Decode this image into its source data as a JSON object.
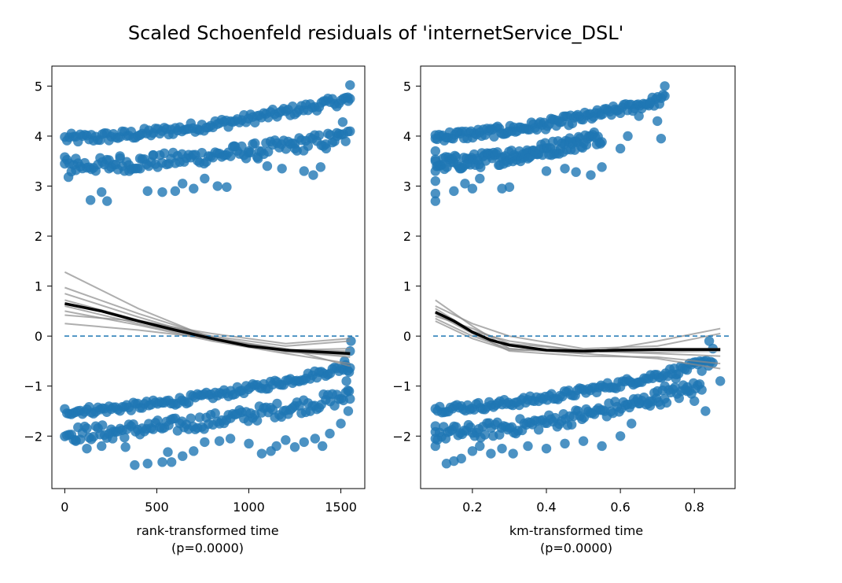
{
  "figure": {
    "title": "Scaled Schoenfeld residuals of 'internetService_DSL'"
  },
  "colors": {
    "points": "#1f77b4",
    "reference_line": "#1f77b4",
    "bootstrap_lines": "#8c8c8c",
    "fit_line": "#000000"
  },
  "chart_data": [
    {
      "type": "scatter",
      "xlabel": "rank-transformed time",
      "xlabel_note": "(p=0.0000)",
      "xlim": [
        -70,
        1630
      ],
      "ylim": [
        -3.05,
        5.4
      ],
      "xticks": [
        0,
        500,
        1000,
        1500
      ],
      "xtick_labels": [
        "0",
        "500",
        "1000",
        "1500"
      ],
      "yticks": [
        -2,
        -1,
        0,
        1,
        2,
        3,
        4,
        5
      ],
      "ytick_labels": [
        "−2",
        "−1",
        "0",
        "1",
        "2",
        "3",
        "4",
        "5"
      ],
      "reference_y": 0,
      "grid": false,
      "fit": {
        "x": [
          0,
          200,
          400,
          600,
          800,
          1000,
          1200,
          1400,
          1550
        ],
        "y": [
          0.65,
          0.5,
          0.3,
          0.12,
          -0.05,
          -0.2,
          -0.28,
          -0.32,
          -0.35
        ]
      },
      "bootstrap": [
        {
          "x": [
            0,
            400,
            800,
            1200,
            1550
          ],
          "y": [
            1.28,
            0.55,
            -0.05,
            -0.3,
            -0.42
          ]
        },
        {
          "x": [
            0,
            400,
            800,
            1200,
            1550
          ],
          "y": [
            0.97,
            0.45,
            -0.02,
            -0.28,
            -0.3
          ]
        },
        {
          "x": [
            0,
            400,
            800,
            1200,
            1550
          ],
          "y": [
            0.85,
            0.38,
            -0.05,
            -0.32,
            -0.38
          ]
        },
        {
          "x": [
            0,
            400,
            800,
            1200,
            1550
          ],
          "y": [
            0.72,
            0.32,
            0.0,
            -0.2,
            -0.1
          ]
        },
        {
          "x": [
            0,
            400,
            800,
            1200,
            1550
          ],
          "y": [
            0.6,
            0.25,
            -0.08,
            -0.28,
            -0.25
          ]
        },
        {
          "x": [
            0,
            400,
            800,
            1200,
            1550
          ],
          "y": [
            0.5,
            0.22,
            -0.1,
            -0.35,
            -0.55
          ]
        },
        {
          "x": [
            0,
            400,
            800,
            1200,
            1550
          ],
          "y": [
            0.42,
            0.3,
            0.05,
            -0.15,
            -0.05
          ]
        },
        {
          "x": [
            0,
            400,
            800,
            1200,
            1550
          ],
          "y": [
            0.25,
            0.12,
            -0.05,
            -0.25,
            -0.6
          ]
        }
      ],
      "bands": [
        {
          "x0": 0,
          "x1": 1550,
          "y0": 3.95,
          "y1": 4.75,
          "spread": 0.1
        },
        {
          "x0": 0,
          "x1": 1550,
          "y0": 3.4,
          "y1": 4.0,
          "spread": 0.15
        },
        {
          "x0": 0,
          "x1": 1550,
          "y0": -1.5,
          "y1": -0.6,
          "spread": 0.08
        },
        {
          "x0": 0,
          "x1": 1550,
          "y0": -1.95,
          "y1": -1.2,
          "spread": 0.15
        }
      ],
      "points": [
        [
          0,
          3.58
        ],
        [
          20,
          3.18
        ],
        [
          60,
          3.55
        ],
        [
          140,
          2.72
        ],
        [
          200,
          2.88
        ],
        [
          230,
          2.7
        ],
        [
          240,
          3.35
        ],
        [
          300,
          3.6
        ],
        [
          350,
          3.3
        ],
        [
          410,
          3.35
        ],
        [
          450,
          2.9
        ],
        [
          480,
          3.62
        ],
        [
          530,
          2.88
        ],
        [
          600,
          2.9
        ],
        [
          640,
          3.05
        ],
        [
          700,
          2.95
        ],
        [
          760,
          3.15
        ],
        [
          830,
          3.0
        ],
        [
          880,
          2.98
        ],
        [
          920,
          3.8
        ],
        [
          1000,
          3.7
        ],
        [
          1050,
          3.55
        ],
        [
          1100,
          3.4
        ],
        [
          1180,
          3.35
        ],
        [
          1250,
          3.75
        ],
        [
          1300,
          3.3
        ],
        [
          1350,
          3.22
        ],
        [
          1390,
          3.38
        ],
        [
          1420,
          3.75
        ],
        [
          1480,
          4.0
        ],
        [
          1510,
          4.28
        ],
        [
          1540,
          4.7
        ],
        [
          1550,
          5.02
        ],
        [
          60,
          -2.1
        ],
        [
          120,
          -2.25
        ],
        [
          200,
          -2.2
        ],
        [
          260,
          -2.05
        ],
        [
          330,
          -2.22
        ],
        [
          380,
          -2.58
        ],
        [
          450,
          -2.55
        ],
        [
          530,
          -2.52
        ],
        [
          560,
          -2.32
        ],
        [
          580,
          -2.52
        ],
        [
          640,
          -2.4
        ],
        [
          700,
          -2.3
        ],
        [
          760,
          -2.12
        ],
        [
          840,
          -2.1
        ],
        [
          900,
          -2.05
        ],
        [
          1000,
          -2.15
        ],
        [
          1070,
          -2.35
        ],
        [
          1120,
          -2.3
        ],
        [
          1150,
          -2.2
        ],
        [
          1200,
          -2.08
        ],
        [
          1250,
          -2.22
        ],
        [
          1300,
          -2.12
        ],
        [
          1360,
          -2.05
        ],
        [
          1400,
          -2.2
        ],
        [
          1440,
          -1.95
        ],
        [
          1500,
          -1.75
        ],
        [
          1540,
          -1.5
        ],
        [
          1545,
          -1.1
        ],
        [
          1550,
          -0.3
        ],
        [
          1555,
          -0.1
        ],
        [
          1545,
          -0.72
        ],
        [
          1530,
          -0.9
        ],
        [
          1520,
          -0.5
        ]
      ]
    },
    {
      "type": "scatter",
      "xlabel": "km-transformed time",
      "xlabel_note": "(p=0.0000)",
      "xlim": [
        0.06,
        0.91
      ],
      "ylim": [
        -3.05,
        5.4
      ],
      "xticks": [
        0.2,
        0.4,
        0.6,
        0.8
      ],
      "xtick_labels": [
        "0.2",
        "0.4",
        "0.6",
        "0.8"
      ],
      "yticks": [
        -2,
        -1,
        0,
        1,
        2,
        3,
        4,
        5
      ],
      "ytick_labels": [
        "−2",
        "−1",
        "0",
        "1",
        "2",
        "3",
        "4",
        "5"
      ],
      "reference_y": 0,
      "grid": false,
      "fit": {
        "x": [
          0.1,
          0.15,
          0.2,
          0.25,
          0.3,
          0.4,
          0.5,
          0.6,
          0.7,
          0.8,
          0.87
        ],
        "y": [
          0.48,
          0.3,
          0.08,
          -0.08,
          -0.18,
          -0.28,
          -0.3,
          -0.28,
          -0.27,
          -0.27,
          -0.27
        ]
      },
      "bootstrap": [
        {
          "x": [
            0.1,
            0.2,
            0.3,
            0.5,
            0.7,
            0.87
          ],
          "y": [
            0.72,
            0.2,
            -0.25,
            -0.35,
            -0.1,
            0.15
          ]
        },
        {
          "x": [
            0.1,
            0.2,
            0.3,
            0.5,
            0.7,
            0.87
          ],
          "y": [
            0.6,
            0.25,
            0.0,
            -0.25,
            -0.2,
            0.05
          ]
        },
        {
          "x": [
            0.1,
            0.2,
            0.3,
            0.5,
            0.7,
            0.87
          ],
          "y": [
            0.55,
            0.1,
            -0.1,
            -0.3,
            -0.35,
            -0.4
          ]
        },
        {
          "x": [
            0.1,
            0.2,
            0.3,
            0.5,
            0.7,
            0.87
          ],
          "y": [
            0.45,
            0.05,
            -0.3,
            -0.4,
            -0.42,
            -0.55
          ]
        },
        {
          "x": [
            0.1,
            0.2,
            0.3,
            0.5,
            0.7,
            0.87
          ],
          "y": [
            0.4,
            0.15,
            -0.15,
            -0.28,
            -0.25,
            -0.25
          ]
        },
        {
          "x": [
            0.1,
            0.2,
            0.3,
            0.5,
            0.7,
            0.87
          ],
          "y": [
            0.35,
            0.0,
            -0.25,
            -0.35,
            -0.45,
            -0.65
          ]
        },
        {
          "x": [
            0.1,
            0.2,
            0.3,
            0.5,
            0.7,
            0.87
          ],
          "y": [
            0.3,
            -0.05,
            -0.28,
            -0.3,
            -0.32,
            -0.3
          ]
        }
      ],
      "bands": [
        {
          "x0": 0.1,
          "x1": 0.72,
          "y0": 4.0,
          "y1": 4.75,
          "spread": 0.1
        },
        {
          "x0": 0.1,
          "x1": 0.55,
          "y0": 3.45,
          "y1": 4.0,
          "spread": 0.15
        },
        {
          "x0": 0.1,
          "x1": 0.85,
          "y0": -1.45,
          "y1": -0.5,
          "spread": 0.08
        },
        {
          "x0": 0.1,
          "x1": 0.82,
          "y0": -1.95,
          "y1": -1.0,
          "spread": 0.15
        }
      ],
      "points": [
        [
          0.1,
          2.7
        ],
        [
          0.1,
          2.85
        ],
        [
          0.1,
          3.1
        ],
        [
          0.1,
          3.3
        ],
        [
          0.1,
          3.5
        ],
        [
          0.1,
          3.7
        ],
        [
          0.1,
          3.95
        ],
        [
          0.15,
          2.9
        ],
        [
          0.18,
          3.05
        ],
        [
          0.2,
          2.95
        ],
        [
          0.22,
          3.15
        ],
        [
          0.28,
          2.95
        ],
        [
          0.3,
          2.98
        ],
        [
          0.35,
          3.55
        ],
        [
          0.4,
          3.3
        ],
        [
          0.45,
          3.35
        ],
        [
          0.48,
          3.28
        ],
        [
          0.52,
          3.22
        ],
        [
          0.55,
          3.38
        ],
        [
          0.6,
          3.75
        ],
        [
          0.62,
          4.0
        ],
        [
          0.65,
          4.4
        ],
        [
          0.68,
          4.65
        ],
        [
          0.7,
          4.3
        ],
        [
          0.71,
          3.95
        ],
        [
          0.72,
          5.0
        ],
        [
          0.1,
          -2.05
        ],
        [
          0.1,
          -2.2
        ],
        [
          0.1,
          -1.8
        ],
        [
          0.13,
          -2.55
        ],
        [
          0.15,
          -2.5
        ],
        [
          0.17,
          -2.45
        ],
        [
          0.2,
          -2.3
        ],
        [
          0.22,
          -2.2
        ],
        [
          0.25,
          -2.35
        ],
        [
          0.28,
          -2.25
        ],
        [
          0.31,
          -2.35
        ],
        [
          0.35,
          -2.2
        ],
        [
          0.4,
          -2.25
        ],
        [
          0.45,
          -2.15
        ],
        [
          0.5,
          -2.1
        ],
        [
          0.55,
          -2.2
        ],
        [
          0.6,
          -2.0
        ],
        [
          0.63,
          -1.75
        ],
        [
          0.65,
          -1.35
        ],
        [
          0.68,
          -1.3
        ],
        [
          0.7,
          -1.1
        ],
        [
          0.72,
          -1.0
        ],
        [
          0.75,
          -0.85
        ],
        [
          0.78,
          -1.1
        ],
        [
          0.8,
          -1.3
        ],
        [
          0.82,
          -0.7
        ],
        [
          0.84,
          -0.1
        ],
        [
          0.85,
          -0.25
        ],
        [
          0.87,
          -0.9
        ],
        [
          0.83,
          -1.5
        ]
      ]
    }
  ]
}
